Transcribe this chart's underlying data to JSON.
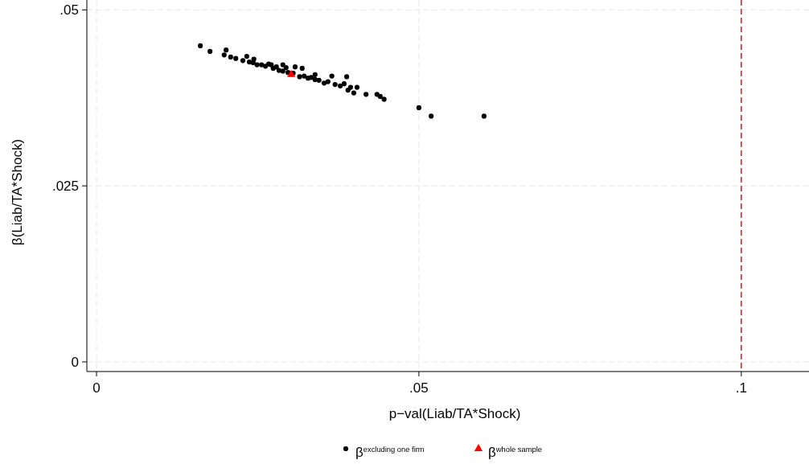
{
  "chart_data": {
    "type": "scatter",
    "xlabel": "p−val(Liab/TA*Shock)",
    "ylabel": "β(Liab/TA*Shock)",
    "xlim": [
      -0.0015,
      0.1105
    ],
    "ylim": [
      -0.00137,
      0.0514
    ],
    "xticks": [
      {
        "value": 0,
        "label": "0"
      },
      {
        "value": 0.05,
        "label": ".05"
      },
      {
        "value": 0.1,
        "label": ".1"
      }
    ],
    "yticks": [
      {
        "value": 0,
        "label": "0"
      },
      {
        "value": 0.025,
        "label": ".025"
      },
      {
        "value": 0.05,
        "label": ".05"
      }
    ],
    "grid": true,
    "legend": "bottom",
    "ref_lines": [
      {
        "axis": "x",
        "value": 0.1,
        "color": "#e41a1c",
        "line_style": "dashed"
      }
    ],
    "series": [
      {
        "name": "β$^{excluding one firm}$",
        "color": "#000000",
        "marker": "circle",
        "x": [
          0.0161,
          0.0176,
          0.0201,
          0.0198,
          0.0208,
          0.0216,
          0.0227,
          0.0233,
          0.0244,
          0.0237,
          0.0243,
          0.0249,
          0.0256,
          0.0262,
          0.0267,
          0.0271,
          0.0274,
          0.0279,
          0.0283,
          0.0289,
          0.0289,
          0.0294,
          0.0297,
          0.0305,
          0.0308,
          0.0319,
          0.0315,
          0.0322,
          0.0328,
          0.0333,
          0.0339,
          0.0339,
          0.0345,
          0.0353,
          0.0359,
          0.0365,
          0.037,
          0.0378,
          0.0384,
          0.0388,
          0.039,
          0.0394,
          0.0399,
          0.0404,
          0.0418,
          0.0435,
          0.044,
          0.0446,
          0.05,
          0.0519,
          0.0601
        ],
        "values": [
          0.0449,
          0.0441,
          0.0443,
          0.0436,
          0.0433,
          0.0431,
          0.0428,
          0.0434,
          0.043,
          0.0426,
          0.0425,
          0.0422,
          0.0422,
          0.042,
          0.0423,
          0.0422,
          0.0417,
          0.0419,
          0.0414,
          0.0422,
          0.0413,
          0.0418,
          0.0411,
          0.041,
          0.0419,
          0.0417,
          0.0405,
          0.0406,
          0.0403,
          0.0404,
          0.0408,
          0.0401,
          0.04,
          0.0396,
          0.0398,
          0.0406,
          0.0394,
          0.0392,
          0.0395,
          0.0405,
          0.0386,
          0.039,
          0.0382,
          0.039,
          0.038,
          0.038,
          0.0377,
          0.0373,
          0.0361,
          0.0349,
          0.0349
        ]
      },
      {
        "name": "β$^{whole sample}$",
        "color": "#ff0000",
        "marker": "triangle",
        "x": [
          0.0302
        ],
        "values": [
          0.0408
        ]
      }
    ]
  }
}
